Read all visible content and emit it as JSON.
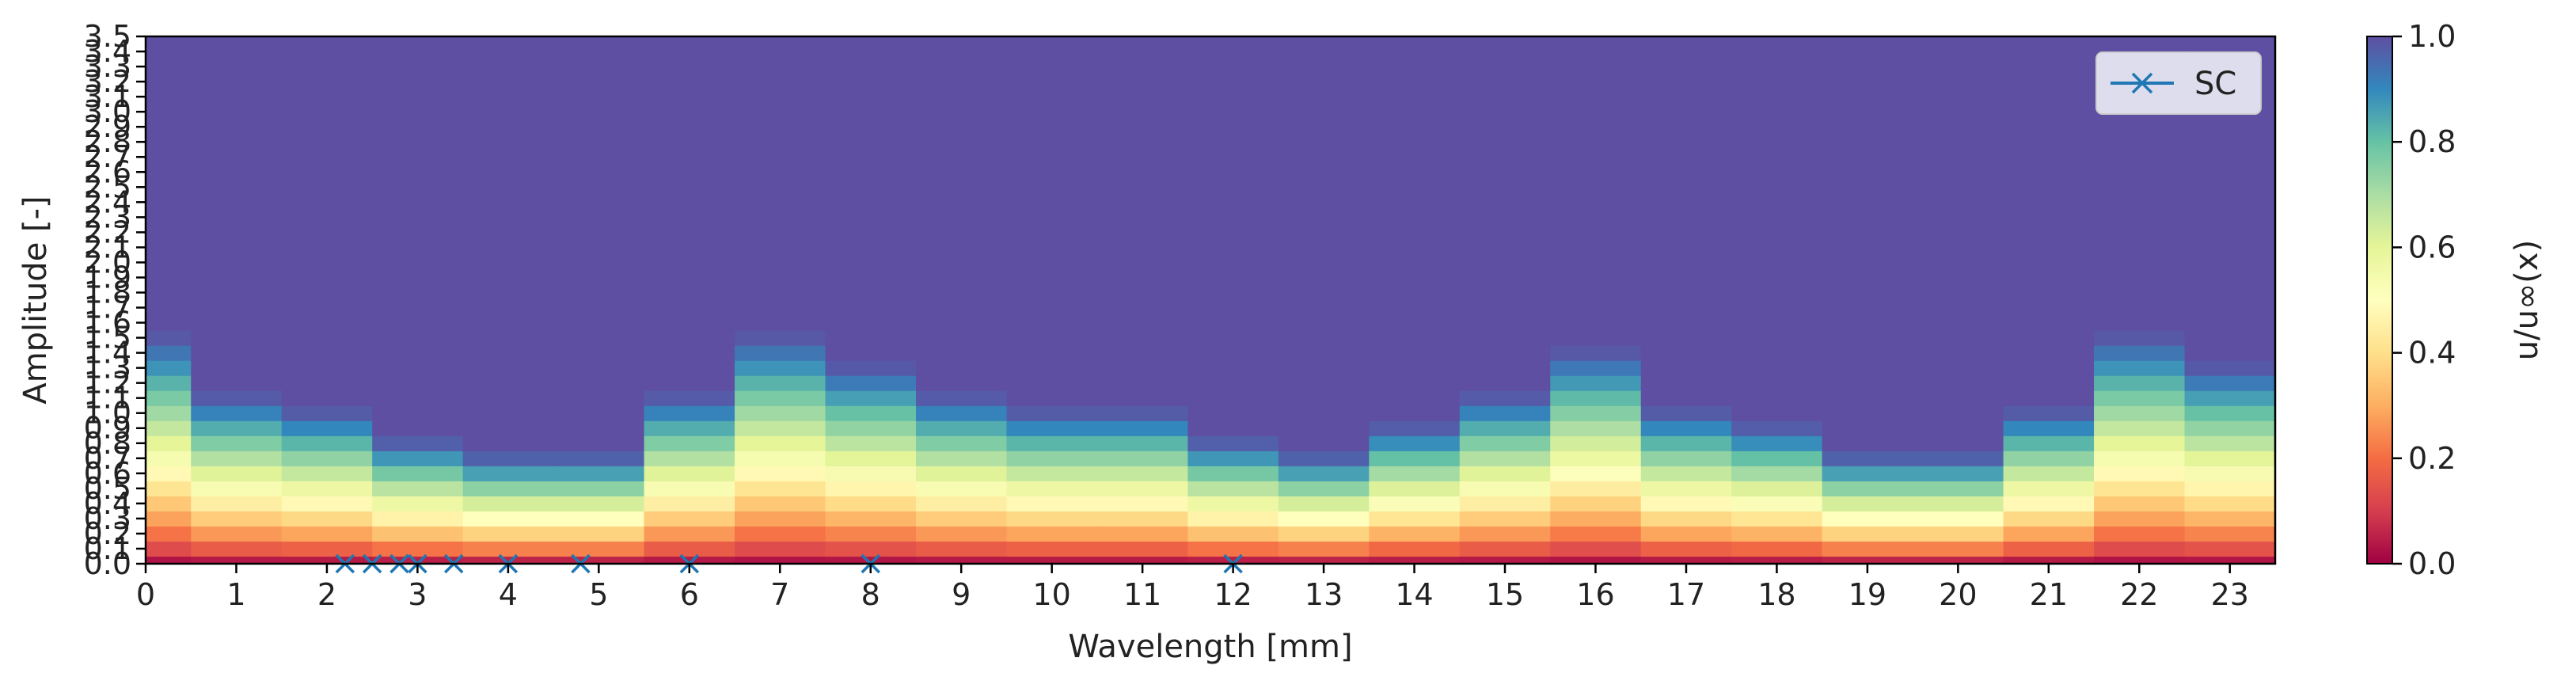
{
  "chart_data": {
    "type": "heatmap",
    "title": "",
    "xlabel": "Wavelength [mm]",
    "ylabel": "Amplitude [-]",
    "colorbar_label": "u/u∞(x)",
    "colormap": "Spectral",
    "x_centers": [
      0,
      1,
      2,
      3,
      4,
      5,
      6,
      7,
      8,
      9,
      10,
      11,
      12,
      13,
      14,
      15,
      16,
      17,
      18,
      19,
      20,
      21,
      22,
      23
    ],
    "y_centers": [
      0,
      0.1,
      0.2,
      0.3,
      0.4,
      0.5,
      0.6,
      0.7,
      0.8,
      0.9,
      1.0,
      1.1,
      1.2,
      1.3,
      1.4,
      1.5,
      1.6,
      1.7,
      1.8,
      1.9,
      2.0,
      2.1,
      2.2,
      2.3,
      2.4,
      2.5,
      2.6,
      2.7,
      2.8,
      2.9,
      3.0,
      3.1,
      3.2,
      3.3,
      3.4,
      3.5
    ],
    "xlim": [
      0,
      23.5
    ],
    "ylim": [
      0,
      3.5
    ],
    "clim": [
      0,
      1
    ],
    "xticks": [
      "0",
      "1",
      "2",
      "3",
      "4",
      "5",
      "6",
      "7",
      "8",
      "9",
      "10",
      "11",
      "12",
      "13",
      "14",
      "15",
      "16",
      "17",
      "18",
      "19",
      "20",
      "21",
      "22",
      "23"
    ],
    "yticks": [
      "0.0",
      "0.1",
      "0.2",
      "0.3",
      "0.4",
      "0.5",
      "0.6",
      "0.7",
      "0.8",
      "0.9",
      "1.0",
      "1.1",
      "1.2",
      "1.3",
      "1.4",
      "1.5",
      "1.6",
      "1.7",
      "1.8",
      "1.9",
      "2.0",
      "2.1",
      "2.2",
      "2.3",
      "2.4",
      "2.5",
      "2.6",
      "2.7",
      "2.8",
      "2.9",
      "3.0",
      "3.1",
      "3.2",
      "3.3",
      "3.4",
      "3.5"
    ],
    "colorbar_ticks": [
      "0.0",
      "0.2",
      "0.4",
      "0.6",
      "0.8",
      "1.0"
    ],
    "saturation_amplitude": [
      1.55,
      1.15,
      1.05,
      0.85,
      0.75,
      0.75,
      1.15,
      1.55,
      1.35,
      1.15,
      1.05,
      1.05,
      0.85,
      0.75,
      0.95,
      1.15,
      1.45,
      1.05,
      0.95,
      0.75,
      0.75,
      1.05,
      1.55,
      1.35
    ],
    "series": [
      {
        "name": "SC",
        "marker": "x",
        "color": "#1f77b4",
        "x": [
          2.2,
          2.5,
          2.8,
          3.0,
          3.4,
          4.0,
          4.8,
          6.0,
          8.0,
          12.0
        ],
        "y": [
          0,
          0,
          0,
          0,
          0,
          0,
          0,
          0,
          0,
          0
        ]
      }
    ],
    "legend": {
      "position": "top-right"
    }
  }
}
